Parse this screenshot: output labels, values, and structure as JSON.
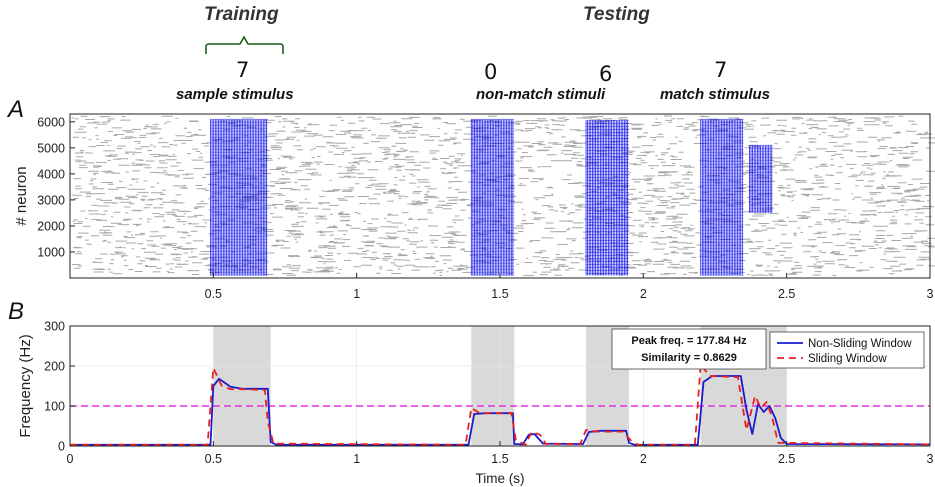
{
  "header": {
    "training": "Training",
    "testing": "Testing",
    "sample_digit": "7",
    "sample_label": "sample stimulus",
    "nonmatch_digit_1": "0",
    "nonmatch_digit_2": "6",
    "nonmatch_label": "non-match stimuli",
    "match_digit": "7",
    "match_label": "match stimulus",
    "bracket_color": "#1a5c1a"
  },
  "panels": {
    "a": "A",
    "b": "B"
  },
  "chart_data": [
    {
      "type": "scatter",
      "name": "raster",
      "ylabel": "# neuron",
      "xlim": [
        0,
        3
      ],
      "ylim": [
        0,
        6300
      ],
      "xticks": [
        "0.5",
        "1",
        "1.5",
        "2",
        "2.5",
        "3"
      ],
      "yticks": [
        "1000",
        "2000",
        "3000",
        "4000",
        "5000",
        "6000"
      ],
      "background_color": "#a8a8a8",
      "stimulus_color": "#1010ee",
      "stimulus_blocks": [
        {
          "start": 0.49,
          "end": 0.69,
          "ymin": 100,
          "ymax": 6100
        },
        {
          "start": 1.4,
          "end": 1.55,
          "ymin": 100,
          "ymax": 6100
        },
        {
          "start": 1.8,
          "end": 1.95,
          "ymin": 100,
          "ymax": 6050
        },
        {
          "start": 2.2,
          "end": 2.35,
          "ymin": 100,
          "ymax": 6100
        },
        {
          "start": 2.37,
          "end": 2.45,
          "ymin": 2500,
          "ymax": 5100
        }
      ]
    },
    {
      "type": "line",
      "name": "frequency",
      "xlabel": "Time (s)",
      "ylabel": "Frequency (Hz)",
      "xlim": [
        0,
        3
      ],
      "ylim": [
        0,
        300
      ],
      "xticks": [
        "0",
        "0.5",
        "1",
        "1.5",
        "2",
        "2.5",
        "3"
      ],
      "yticks": [
        "0",
        "100",
        "200",
        "300"
      ],
      "grid": true,
      "threshold": 100,
      "threshold_color": "#dd33dd",
      "shaded_regions": [
        [
          0.5,
          0.7
        ],
        [
          1.4,
          1.55
        ],
        [
          1.8,
          1.95
        ],
        [
          2.2,
          2.5
        ]
      ],
      "annotation": {
        "line1": "Peak freq. = 177.84 Hz",
        "line2": "Similarity = 0.8629"
      },
      "legend_position": "top-right",
      "series": [
        {
          "name": "Non-Sliding Window",
          "color": "#1a1ad0",
          "dash": "",
          "points": [
            [
              0,
              3
            ],
            [
              0.49,
              3
            ],
            [
              0.5,
              150
            ],
            [
              0.52,
              168
            ],
            [
              0.56,
              148
            ],
            [
              0.6,
              143
            ],
            [
              0.69,
              143
            ],
            [
              0.7,
              10
            ],
            [
              0.72,
              3
            ],
            [
              1.39,
              3
            ],
            [
              1.41,
              80
            ],
            [
              1.45,
              82
            ],
            [
              1.545,
              82
            ],
            [
              1.55,
              5
            ],
            [
              1.58,
              4
            ],
            [
              1.6,
              28
            ],
            [
              1.62,
              30
            ],
            [
              1.65,
              6
            ],
            [
              1.79,
              5
            ],
            [
              1.81,
              35
            ],
            [
              1.85,
              38
            ],
            [
              1.94,
              38
            ],
            [
              1.95,
              8
            ],
            [
              1.97,
              3
            ],
            [
              2.19,
              3
            ],
            [
              2.21,
              160
            ],
            [
              2.24,
              175
            ],
            [
              2.34,
              175
            ],
            [
              2.36,
              90
            ],
            [
              2.38,
              30
            ],
            [
              2.4,
              105
            ],
            [
              2.42,
              85
            ],
            [
              2.44,
              100
            ],
            [
              2.46,
              70
            ],
            [
              2.48,
              20
            ],
            [
              2.5,
              5
            ],
            [
              3,
              4
            ]
          ]
        },
        {
          "name": "Sliding Window",
          "color": "#e82020",
          "dash": "7,5",
          "points": [
            [
              0,
              3
            ],
            [
              0.48,
              3
            ],
            [
              0.5,
              195
            ],
            [
              0.53,
              150
            ],
            [
              0.56,
              142
            ],
            [
              0.6,
              142
            ],
            [
              0.68,
              140
            ],
            [
              0.69,
              60
            ],
            [
              0.71,
              6
            ],
            [
              1.38,
              3
            ],
            [
              1.4,
              95
            ],
            [
              1.43,
              82
            ],
            [
              1.54,
              82
            ],
            [
              1.555,
              15
            ],
            [
              1.59,
              3
            ],
            [
              1.61,
              35
            ],
            [
              1.64,
              28
            ],
            [
              1.66,
              5
            ],
            [
              1.78,
              5
            ],
            [
              1.8,
              40
            ],
            [
              1.84,
              36
            ],
            [
              1.93,
              36
            ],
            [
              1.955,
              15
            ],
            [
              1.98,
              3
            ],
            [
              2.18,
              3
            ],
            [
              2.2,
              205
            ],
            [
              2.23,
              175
            ],
            [
              2.33,
              172
            ],
            [
              2.36,
              40
            ],
            [
              2.39,
              125
            ],
            [
              2.41,
              95
            ],
            [
              2.43,
              110
            ],
            [
              2.45,
              70
            ],
            [
              2.47,
              8
            ],
            [
              3,
              4
            ]
          ]
        }
      ]
    }
  ]
}
